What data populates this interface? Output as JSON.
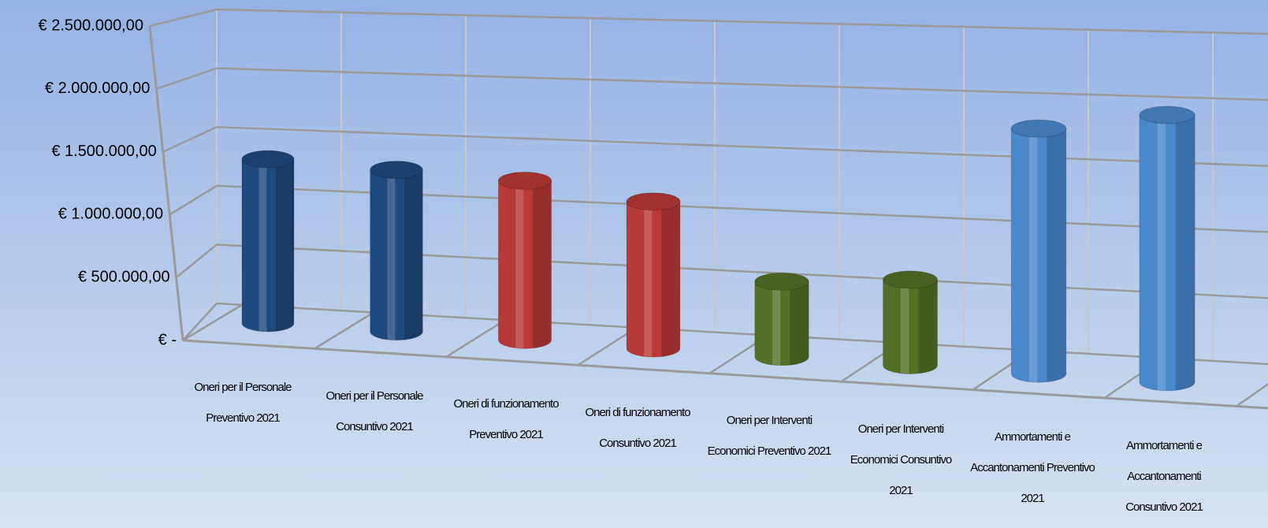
{
  "chart_data": {
    "type": "cylinder3d",
    "categories": [
      "Oneri per il Personale Preventivo 2021",
      "Oneri per il Personale Consuntivo 2021",
      "Oneri di funzionamento Preventivo 2021",
      "Oneri di funzionamento Consuntivo 2021",
      "Oneri per Interventi Economici Preventivo 2021",
      "Oneri per Interventi Economici Consuntivo 2021",
      "Ammortamenti e Accantonamenti Preventivo 2021",
      "Ammortamenti e Accantonamenti Consuntivo 2021"
    ],
    "values": [
      1300000,
      1250000,
      1200000,
      1080000,
      540000,
      600000,
      1680000,
      1790000
    ],
    "colors": [
      "#1f4a7e",
      "#1f4a7e",
      "#b83a36",
      "#b83a36",
      "#566f26",
      "#566f26",
      "#4a88cc",
      "#4a88cc"
    ],
    "ylim": [
      0,
      2500000
    ],
    "yticks": [
      {
        "value": 0,
        "label": "€ -"
      },
      {
        "value": 500000,
        "label": "€ 500.000,00"
      },
      {
        "value": 1000000,
        "label": "€ 1.000.000,00"
      },
      {
        "value": 1500000,
        "label": "€ 1.500.000,00"
      },
      {
        "value": 2000000,
        "label": "€ 2.000.000,00"
      },
      {
        "value": 2500000,
        "label": "€ 2.500.000,00"
      }
    ],
    "grid": true
  }
}
